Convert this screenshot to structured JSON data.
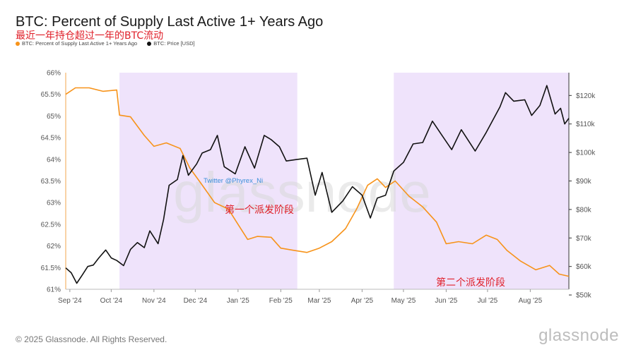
{
  "header": {
    "title": "BTC: Percent of Supply Last Active 1+ Years Ago",
    "subtitle": "最近一年持仓超过一年的BTC流动",
    "legend": [
      {
        "label": "BTC: Percent of Supply Last Active 1+ Years Ago",
        "color": "#f7931a"
      },
      {
        "label": "BTC: Price [USD]",
        "color": "#111111"
      }
    ]
  },
  "footer": {
    "copyright": "© 2025 Glassnode. All Rights Reserved.",
    "brand": "glassnode"
  },
  "watermark": "glassnode",
  "chart_data": {
    "type": "line",
    "title": "BTC: Percent of Supply Last Active 1+ Years Ago",
    "x_range": [
      "2024-08-29",
      "2025-08-29"
    ],
    "x_ticks": [
      "Sep '24",
      "Oct '24",
      "Nov '24",
      "Dec '24",
      "Jan '25",
      "Feb '25",
      "Mar '25",
      "Apr '25",
      "May '25",
      "Jun '25",
      "Jul '25",
      "Aug '25"
    ],
    "y_left": {
      "ticks": [
        "66%",
        "65.5%",
        "65%",
        "64.5%",
        "64%",
        "63.5%",
        "63%",
        "62.5%",
        "62%",
        "61.5%",
        "61%"
      ],
      "range": [
        61,
        66
      ]
    },
    "y_right": {
      "ticks": [
        "$120k",
        "$110k",
        "$100k",
        "$90k",
        "$80k",
        "$70k",
        "$60k",
        "$50k"
      ],
      "range": [
        52000,
        128000
      ]
    },
    "grid": false,
    "legend_position": "top-left",
    "shaded_periods": [
      {
        "start": "2024-10-07",
        "end": "2025-02-13",
        "color": "#efe3fb",
        "label": "第一个派发阶段"
      },
      {
        "start": "2025-04-24",
        "end": "2025-08-29",
        "color": "#efe3fb",
        "label": "第二个派发阶段"
      }
    ],
    "annotations": [
      "第一个派发阶段",
      "第二个派发阶段"
    ],
    "credit": "Twitter @Phyrex_Ni",
    "series": [
      {
        "name": "BTC: Percent of Supply Last Active 1+ Years Ago",
        "axis": "left",
        "color": "#f7931a",
        "points": [
          [
            "2024-08-29",
            65.5
          ],
          [
            "2024-09-05",
            65.65
          ],
          [
            "2024-09-15",
            65.65
          ],
          [
            "2024-09-25",
            65.57
          ],
          [
            "2024-10-05",
            65.6
          ],
          [
            "2024-10-07",
            65.02
          ],
          [
            "2024-10-15",
            64.98
          ],
          [
            "2024-10-25",
            64.55
          ],
          [
            "2024-11-01",
            64.3
          ],
          [
            "2024-11-10",
            64.38
          ],
          [
            "2024-11-20",
            64.25
          ],
          [
            "2024-11-27",
            63.8
          ],
          [
            "2024-12-05",
            63.45
          ],
          [
            "2024-12-15",
            63.0
          ],
          [
            "2024-12-25",
            62.85
          ],
          [
            "2025-01-01",
            62.5
          ],
          [
            "2025-01-08",
            62.15
          ],
          [
            "2025-01-15",
            62.22
          ],
          [
            "2025-01-25",
            62.2
          ],
          [
            "2025-02-01",
            61.95
          ],
          [
            "2025-02-10",
            61.9
          ],
          [
            "2025-02-20",
            61.85
          ],
          [
            "2025-03-01",
            61.95
          ],
          [
            "2025-03-10",
            62.1
          ],
          [
            "2025-03-20",
            62.4
          ],
          [
            "2025-03-28",
            62.85
          ],
          [
            "2025-04-05",
            63.4
          ],
          [
            "2025-04-12",
            63.55
          ],
          [
            "2025-04-18",
            63.35
          ],
          [
            "2025-04-25",
            63.5
          ],
          [
            "2025-05-05",
            63.15
          ],
          [
            "2025-05-15",
            62.9
          ],
          [
            "2025-05-25",
            62.55
          ],
          [
            "2025-06-01",
            62.05
          ],
          [
            "2025-06-10",
            62.1
          ],
          [
            "2025-06-20",
            62.05
          ],
          [
            "2025-06-30",
            62.25
          ],
          [
            "2025-07-08",
            62.15
          ],
          [
            "2025-07-15",
            61.9
          ],
          [
            "2025-07-25",
            61.65
          ],
          [
            "2025-08-05",
            61.45
          ],
          [
            "2025-08-15",
            61.55
          ],
          [
            "2025-08-22",
            61.35
          ],
          [
            "2025-08-29",
            61.3
          ]
        ]
      },
      {
        "name": "BTC: Price [USD]",
        "axis": "right",
        "color": "#111111",
        "points": [
          [
            "2024-08-29",
            59500
          ],
          [
            "2024-09-02",
            57800
          ],
          [
            "2024-09-06",
            54100
          ],
          [
            "2024-09-10",
            57000
          ],
          [
            "2024-09-14",
            60000
          ],
          [
            "2024-09-18",
            60500
          ],
          [
            "2024-09-22",
            63000
          ],
          [
            "2024-09-27",
            65800
          ],
          [
            "2024-10-01",
            63000
          ],
          [
            "2024-10-05",
            62100
          ],
          [
            "2024-10-10",
            60300
          ],
          [
            "2024-10-15",
            66000
          ],
          [
            "2024-10-20",
            68400
          ],
          [
            "2024-10-25",
            66600
          ],
          [
            "2024-10-29",
            72500
          ],
          [
            "2024-11-04",
            68000
          ],
          [
            "2024-11-08",
            76500
          ],
          [
            "2024-11-12",
            88500
          ],
          [
            "2024-11-18",
            90500
          ],
          [
            "2024-11-22",
            98900
          ],
          [
            "2024-11-26",
            92000
          ],
          [
            "2024-12-02",
            96000
          ],
          [
            "2024-12-06",
            99800
          ],
          [
            "2024-12-12",
            101000
          ],
          [
            "2024-12-17",
            106000
          ],
          [
            "2024-12-22",
            95000
          ],
          [
            "2024-12-30",
            92500
          ],
          [
            "2025-01-06",
            102000
          ],
          [
            "2025-01-13",
            94500
          ],
          [
            "2025-01-20",
            106000
          ],
          [
            "2025-01-25",
            104500
          ],
          [
            "2025-01-31",
            102000
          ],
          [
            "2025-02-05",
            97000
          ],
          [
            "2025-02-12",
            97500
          ],
          [
            "2025-02-20",
            98000
          ],
          [
            "2025-02-26",
            85000
          ],
          [
            "2025-03-03",
            93000
          ],
          [
            "2025-03-10",
            79000
          ],
          [
            "2025-03-18",
            83000
          ],
          [
            "2025-03-25",
            88000
          ],
          [
            "2025-04-01",
            85000
          ],
          [
            "2025-04-07",
            77000
          ],
          [
            "2025-04-12",
            84000
          ],
          [
            "2025-04-18",
            85000
          ],
          [
            "2025-04-24",
            93500
          ],
          [
            "2025-05-01",
            96500
          ],
          [
            "2025-05-08",
            103000
          ],
          [
            "2025-05-15",
            103500
          ],
          [
            "2025-05-22",
            111000
          ],
          [
            "2025-05-29",
            106000
          ],
          [
            "2025-06-05",
            101000
          ],
          [
            "2025-06-12",
            108000
          ],
          [
            "2025-06-22",
            100500
          ],
          [
            "2025-06-30",
            107000
          ],
          [
            "2025-07-10",
            116000
          ],
          [
            "2025-07-14",
            121000
          ],
          [
            "2025-07-20",
            118000
          ],
          [
            "2025-07-28",
            118500
          ],
          [
            "2025-08-02",
            113000
          ],
          [
            "2025-08-08",
            116500
          ],
          [
            "2025-08-13",
            123500
          ],
          [
            "2025-08-19",
            113500
          ],
          [
            "2025-08-23",
            115500
          ],
          [
            "2025-08-26",
            110000
          ],
          [
            "2025-08-29",
            112000
          ]
        ]
      }
    ]
  }
}
